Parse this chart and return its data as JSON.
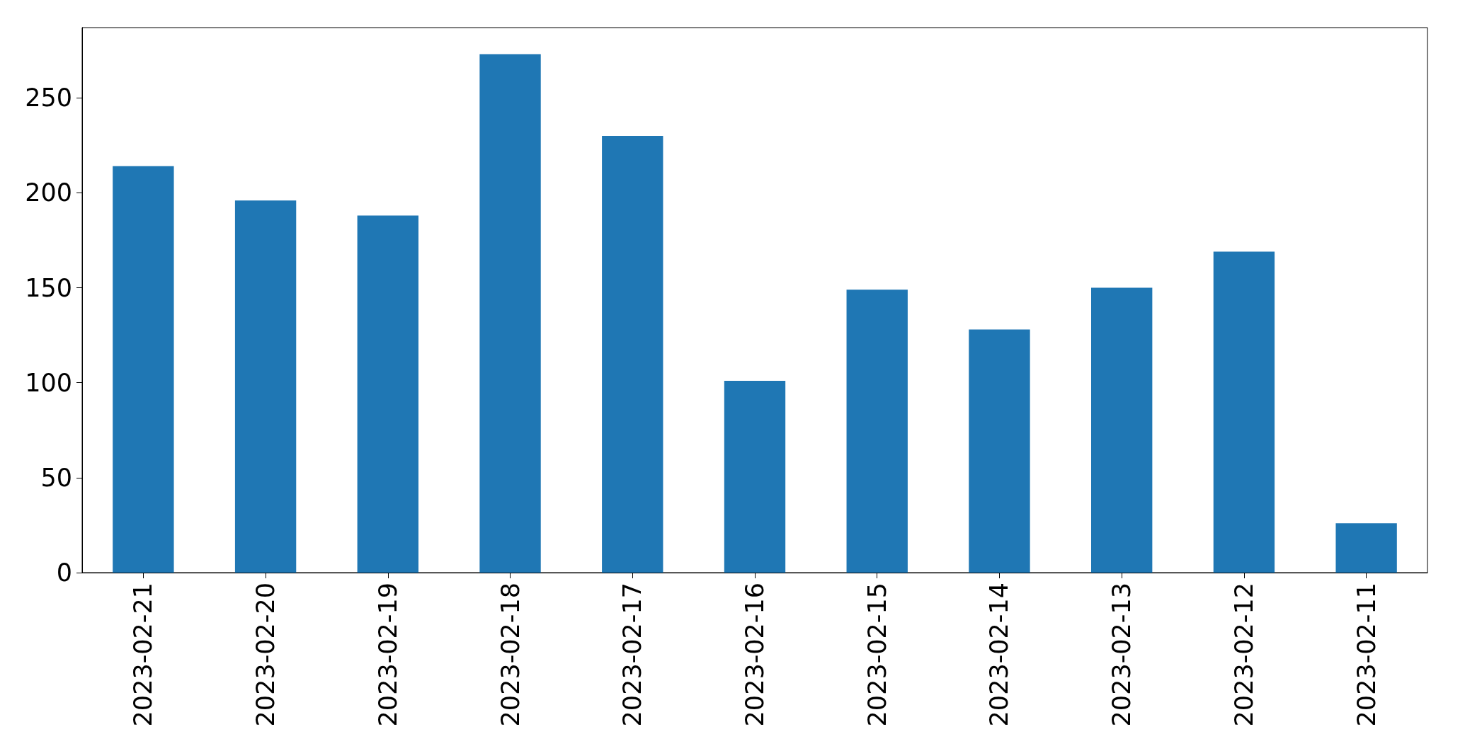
{
  "chart_data": {
    "type": "bar",
    "categories": [
      "2023-02-21",
      "2023-02-20",
      "2023-02-19",
      "2023-02-18",
      "2023-02-17",
      "2023-02-16",
      "2023-02-15",
      "2023-02-14",
      "2023-02-13",
      "2023-02-12",
      "2023-02-11"
    ],
    "values": [
      214,
      196,
      188,
      273,
      230,
      101,
      149,
      128,
      150,
      169,
      26
    ],
    "color": "#1f77b4",
    "ylim": [
      0,
      287
    ],
    "yticks": [
      0,
      50,
      100,
      150,
      200,
      250
    ],
    "grid": false
  }
}
